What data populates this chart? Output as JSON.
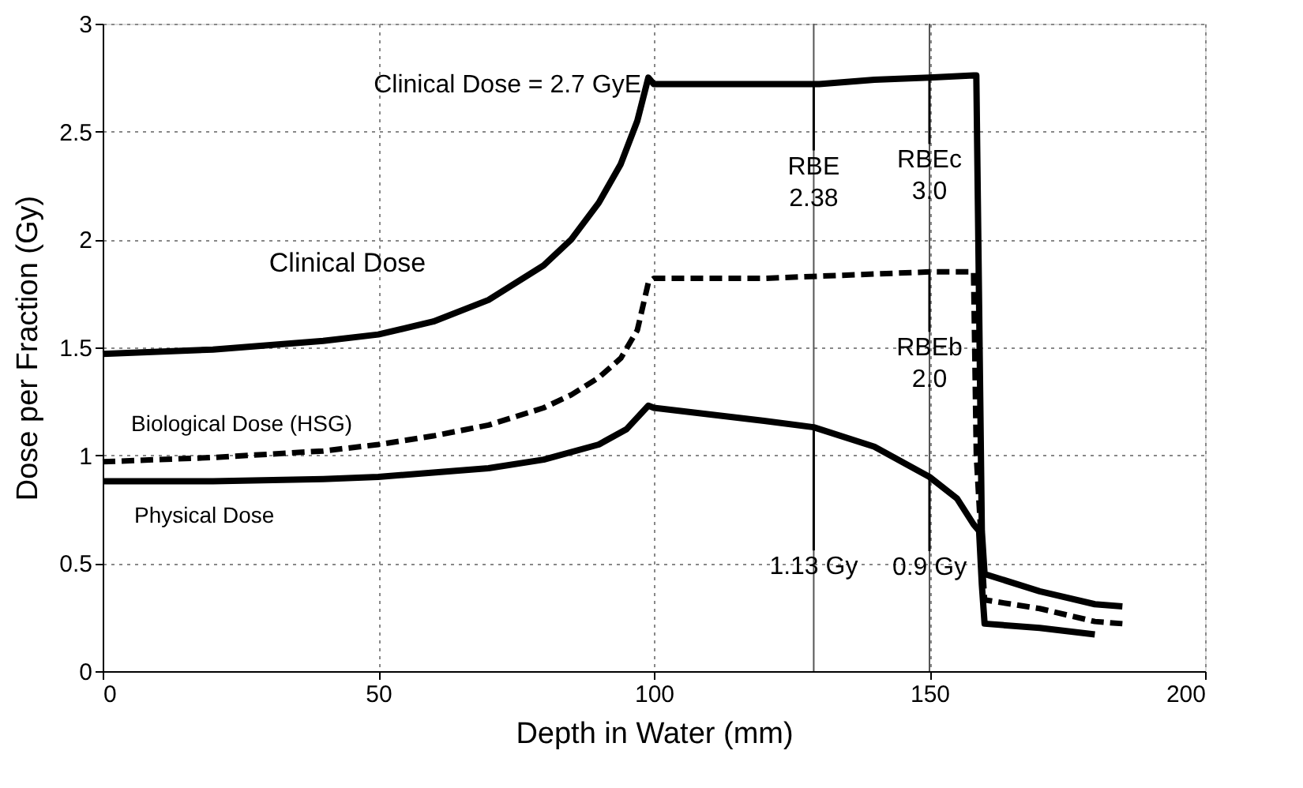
{
  "chart_data": {
    "type": "line",
    "xlabel": "Depth in Water (mm)",
    "ylabel": "Dose per Fraction (Gy)",
    "xlim": [
      0,
      200
    ],
    "xticks": [
      0,
      50,
      100,
      150,
      200
    ],
    "ylim": [
      0,
      3
    ],
    "yticks": [
      0,
      0.5,
      1,
      1.5,
      2,
      2.5,
      3
    ],
    "grid": true,
    "legend": false,
    "marker": "none",
    "series": [
      {
        "name": "Clinical Dose",
        "color": "#000000",
        "line_style": "solid",
        "x": [
          0,
          20,
          40,
          50,
          60,
          70,
          80,
          85,
          90,
          94,
          97,
          99,
          100,
          110,
          130,
          140,
          150,
          158,
          158.5,
          159.5,
          160,
          170,
          180,
          185
        ],
        "values": [
          1.47,
          1.49,
          1.53,
          1.56,
          1.62,
          1.72,
          1.88,
          2.0,
          2.17,
          2.35,
          2.55,
          2.75,
          2.72,
          2.72,
          2.72,
          2.74,
          2.75,
          2.76,
          2.76,
          0.65,
          0.45,
          0.37,
          0.31,
          0.3
        ]
      },
      {
        "name": "Biological Dose (HSG)",
        "color": "#000000",
        "line_style": "dashed",
        "x": [
          0,
          20,
          40,
          50,
          60,
          70,
          80,
          85,
          90,
          94,
          97,
          99,
          100,
          120,
          140,
          150,
          158,
          158.5,
          160,
          170,
          180,
          185
        ],
        "values": [
          0.97,
          0.99,
          1.02,
          1.05,
          1.09,
          1.14,
          1.22,
          1.28,
          1.36,
          1.45,
          1.58,
          1.8,
          1.82,
          1.82,
          1.84,
          1.85,
          1.85,
          1.0,
          0.33,
          0.29,
          0.23,
          0.22
        ]
      },
      {
        "name": "Physical Dose",
        "color": "#000000",
        "line_style": "solid",
        "x": [
          0,
          20,
          40,
          50,
          60,
          70,
          80,
          90,
          95,
          99,
          100,
          110,
          120,
          129,
          140,
          150,
          155,
          158,
          159,
          159.5,
          160,
          170,
          180
        ],
        "values": [
          0.88,
          0.88,
          0.89,
          0.9,
          0.92,
          0.94,
          0.98,
          1.05,
          1.12,
          1.23,
          1.22,
          1.19,
          1.16,
          1.13,
          1.04,
          0.9,
          0.8,
          0.68,
          0.65,
          0.4,
          0.22,
          0.2,
          0.17
        ]
      }
    ],
    "ref_lines": [
      {
        "axis": "x",
        "value": 129,
        "label": null,
        "color": "#555555"
      },
      {
        "axis": "x",
        "value": 150,
        "label": null,
        "color": "#555555"
      }
    ],
    "annotations": [
      {
        "text": "Clinical Dose = 2.7 GyE",
        "x": 100,
        "y": 2.72
      },
      {
        "text": "RBE\n2.38",
        "x": 129,
        "y": 2.72
      },
      {
        "text": "RBEc\n3.0",
        "x": 150,
        "y": 2.75
      },
      {
        "text": "RBEb\n2.0",
        "x": 150,
        "y": 1.85
      },
      {
        "text": "1.13 Gy",
        "x": 129,
        "y": 1.13
      },
      {
        "text": "0.9 Gy",
        "x": 150,
        "y": 0.9
      }
    ]
  }
}
